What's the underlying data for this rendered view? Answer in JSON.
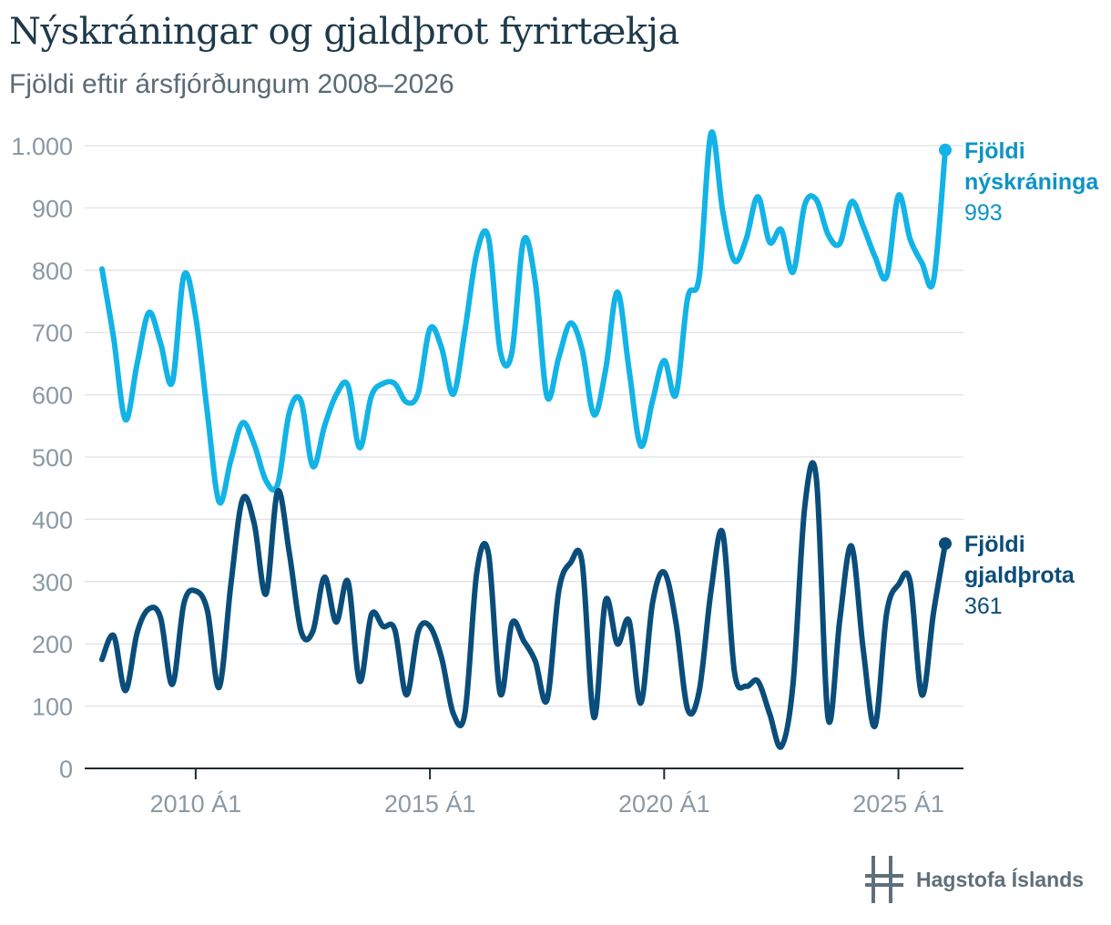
{
  "header": {
    "title": "Nýskráningar og gjaldþrot fyrirtækja",
    "subtitle": "Fjöldi eftir ársfjórðungum 2008–2026"
  },
  "logo": {
    "text": "Hagstofa Íslands",
    "icon": "hagstofa-logo-icon"
  },
  "colors": {
    "series1": "#12b3e6",
    "series2": "#0a4d7a",
    "label1": "#0e93c6",
    "grid": "#e2e5e8",
    "axis": "#1f2a30",
    "tick": "#8a99a4"
  },
  "chart_data": {
    "type": "line",
    "title": "Nýskráningar og gjaldþrot fyrirtækja",
    "subtitle": "Fjöldi eftir ársfjórðungum 2008–2026",
    "xlabel": "",
    "ylabel": "",
    "ylim": [
      0,
      1000
    ],
    "yticks": [
      0,
      100,
      200,
      300,
      400,
      500,
      600,
      700,
      800,
      900,
      1000
    ],
    "ytick_labels": [
      "0",
      "100",
      "200",
      "300",
      "400",
      "500",
      "600",
      "700",
      "800",
      "900",
      "1.000"
    ],
    "x_start": "2008 Á1",
    "xticks": [
      8,
      28,
      48,
      68
    ],
    "xtick_labels": [
      "2010 Á1",
      "2015 Á1",
      "2020 Á1",
      "2025 Á1"
    ],
    "grid": true,
    "legend": "end-of-line labels",
    "series": [
      {
        "name": "Fjöldi nýskráninga",
        "label_lines": [
          "Fjöldi",
          "nýskráninga"
        ],
        "last_value_label": "993",
        "values": [
          802,
          690,
          560,
          650,
          732,
          683,
          620,
          792,
          725,
          570,
          428,
          495,
          555,
          520,
          462,
          456,
          572,
          590,
          485,
          550,
          600,
          615,
          515,
          598,
          618,
          618,
          588,
          603,
          706,
          675,
          601,
          705,
          828,
          852,
          670,
          668,
          848,
          780,
          597,
          660,
          715,
          672,
          568,
          640,
          765,
          640,
          518,
          590,
          655,
          600,
          755,
          790,
          1020,
          895,
          815,
          850,
          918,
          845,
          865,
          797,
          905,
          913,
          857,
          843,
          910,
          870,
          822,
          790,
          920,
          850,
          812,
          783,
          993
        ]
      },
      {
        "name": "Fjöldi gjaldþrota",
        "label_lines": [
          "Fjöldi",
          "gjaldþrota"
        ],
        "last_value_label": "361",
        "values": [
          175,
          213,
          125,
          218,
          256,
          242,
          135,
          265,
          285,
          253,
          130,
          295,
          432,
          393,
          280,
          445,
          345,
          220,
          220,
          307,
          235,
          300,
          140,
          247,
          228,
          223,
          118,
          220,
          228,
          177,
          88,
          90,
          315,
          345,
          120,
          233,
          205,
          172,
          110,
          285,
          330,
          330,
          82,
          270,
          200,
          237,
          105,
          265,
          315,
          235,
          95,
          125,
          285,
          378,
          155,
          132,
          140,
          88,
          35,
          135,
          420,
          465,
          80,
          240,
          357,
          190,
          68,
          250,
          295,
          300,
          118,
          250,
          361
        ]
      }
    ]
  }
}
